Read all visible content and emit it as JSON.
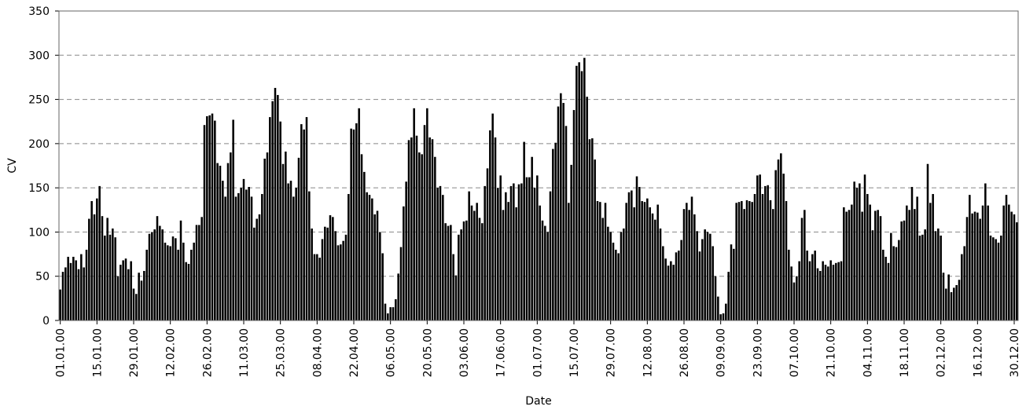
{
  "chart_data": {
    "type": "bar",
    "x_label": "Date",
    "y_label": "CV",
    "color": "#000000",
    "grid": true,
    "ylim": [
      0,
      350
    ],
    "yticks": [
      0,
      50,
      100,
      150,
      200,
      250,
      300,
      350
    ],
    "categories": [
      "01.01.00",
      null,
      null,
      null,
      null,
      null,
      null,
      null,
      null,
      null,
      null,
      null,
      null,
      null,
      "15.01.00",
      null,
      null,
      null,
      null,
      null,
      null,
      null,
      null,
      null,
      null,
      null,
      null,
      null,
      "29.01.00",
      null,
      null,
      null,
      null,
      null,
      null,
      null,
      null,
      null,
      null,
      null,
      null,
      null,
      "12.02.00",
      null,
      null,
      null,
      null,
      null,
      null,
      null,
      null,
      null,
      null,
      null,
      null,
      null,
      "26.02.00",
      null,
      null,
      null,
      null,
      null,
      null,
      null,
      null,
      null,
      null,
      null,
      null,
      null,
      "11.03.00",
      null,
      null,
      null,
      null,
      null,
      null,
      null,
      null,
      null,
      null,
      null,
      null,
      null,
      "25.03.00",
      null,
      null,
      null,
      null,
      null,
      null,
      null,
      null,
      null,
      null,
      null,
      null,
      null,
      "08.04.00",
      null,
      null,
      null,
      null,
      null,
      null,
      null,
      null,
      null,
      null,
      null,
      null,
      null,
      "22.04.00",
      null,
      null,
      null,
      null,
      null,
      null,
      null,
      null,
      null,
      null,
      null,
      null,
      null,
      "06.05.00",
      null,
      null,
      null,
      null,
      null,
      null,
      null,
      null,
      null,
      null,
      null,
      null,
      null,
      "20.05.00",
      null,
      null,
      null,
      null,
      null,
      null,
      null,
      null,
      null,
      null,
      null,
      null,
      null,
      "03.06.00",
      null,
      null,
      null,
      null,
      null,
      null,
      null,
      null,
      null,
      null,
      null,
      null,
      null,
      "17.06.00",
      null,
      null,
      null,
      null,
      null,
      null,
      null,
      null,
      null,
      null,
      null,
      null,
      null,
      "01.07.00",
      null,
      null,
      null,
      null,
      null,
      null,
      null,
      null,
      null,
      null,
      null,
      null,
      null,
      "15.07.00",
      null,
      null,
      null,
      null,
      null,
      null,
      null,
      null,
      null,
      null,
      null,
      null,
      null,
      "29.07.00",
      null,
      null,
      null,
      null,
      null,
      null,
      null,
      null,
      null,
      null,
      null,
      null,
      null,
      "12.08.00",
      null,
      null,
      null,
      null,
      null,
      null,
      null,
      null,
      null,
      null,
      null,
      null,
      null,
      "26.08.00",
      null,
      null,
      null,
      null,
      null,
      null,
      null,
      null,
      null,
      null,
      null,
      null,
      null,
      "09.09.00",
      null,
      null,
      null,
      null,
      null,
      null,
      null,
      null,
      null,
      null,
      null,
      null,
      null,
      "23.09.00",
      null,
      null,
      null,
      null,
      null,
      null,
      null,
      null,
      null,
      null,
      null,
      null,
      null,
      "07.10.00",
      null,
      null,
      null,
      null,
      null,
      null,
      null,
      null,
      null,
      null,
      null,
      null,
      null,
      "21.10.00",
      null,
      null,
      null,
      null,
      null,
      null,
      null,
      null,
      null,
      null,
      null,
      null,
      null,
      "04.11.00",
      null,
      null,
      null,
      null,
      null,
      null,
      null,
      null,
      null,
      null,
      null,
      null,
      null,
      "18.11.00",
      null,
      null,
      null,
      null,
      null,
      null,
      null,
      null,
      null,
      null,
      null,
      null,
      null,
      "02.12.00",
      null,
      null,
      null,
      null,
      null,
      null,
      null,
      null,
      null,
      null,
      null,
      null,
      null,
      "16.12.00",
      null,
      null,
      null,
      null,
      null,
      null,
      null,
      null,
      null,
      null,
      null,
      null,
      null,
      "30.12.00",
      null
    ],
    "values": [
      35,
      55,
      60,
      72,
      65,
      72,
      68,
      58,
      75,
      60,
      80,
      115,
      135,
      120,
      138,
      152,
      118,
      96,
      116,
      97,
      104,
      94,
      50,
      63,
      68,
      70,
      58,
      67,
      36,
      30,
      54,
      45,
      56,
      80,
      98,
      100,
      103,
      118,
      107,
      103,
      88,
      85,
      84,
      95,
      93,
      80,
      113,
      88,
      66,
      64,
      80,
      88,
      108,
      108,
      117,
      221,
      231,
      232,
      234,
      226,
      178,
      175,
      158,
      140,
      178,
      190,
      227,
      140,
      144,
      150,
      160,
      148,
      151,
      140,
      105,
      115,
      120,
      143,
      183,
      190,
      230,
      248,
      263,
      255,
      225,
      177,
      191,
      155,
      158,
      140,
      150,
      184,
      222,
      216,
      230,
      146,
      104,
      75,
      75,
      71,
      92,
      106,
      105,
      119,
      117,
      101,
      85,
      86,
      90,
      97,
      143,
      217,
      216,
      223,
      240,
      188,
      168,
      145,
      142,
      138,
      120,
      124,
      100,
      76,
      19,
      8,
      15,
      15,
      24,
      53,
      83,
      129,
      157,
      204,
      207,
      240,
      209,
      190,
      188,
      221,
      240,
      207,
      205,
      185,
      150,
      152,
      142,
      110,
      107,
      108,
      75,
      51,
      97,
      103,
      112,
      113,
      146,
      130,
      124,
      133,
      116,
      110,
      152,
      172,
      215,
      234,
      207,
      150,
      164,
      125,
      145,
      134,
      152,
      155,
      128,
      154,
      155,
      202,
      162,
      162,
      185,
      150,
      164,
      130,
      113,
      107,
      100,
      146,
      194,
      201,
      242,
      257,
      246,
      220,
      133,
      176,
      238,
      288,
      292,
      282,
      297,
      253,
      205,
      206,
      182,
      135,
      134,
      116,
      133,
      106,
      100,
      88,
      80,
      76,
      100,
      104,
      133,
      145,
      147,
      128,
      163,
      151,
      135,
      134,
      138,
      128,
      121,
      114,
      131,
      104,
      84,
      70,
      62,
      67,
      63,
      77,
      79,
      91,
      126,
      133,
      125,
      140,
      120,
      101,
      78,
      92,
      103,
      100,
      98,
      84,
      50,
      27,
      7,
      8,
      19,
      55,
      86,
      81,
      133,
      134,
      135,
      126,
      136,
      135,
      134,
      143,
      164,
      165,
      143,
      152,
      153,
      136,
      126,
      170,
      182,
      189,
      166,
      135,
      80,
      61,
      43,
      50,
      67,
      116,
      125,
      79,
      67,
      75,
      79,
      59,
      56,
      67,
      63,
      61,
      68,
      63,
      65,
      66,
      67,
      128,
      123,
      125,
      131,
      157,
      150,
      155,
      123,
      165,
      143,
      131,
      102,
      124,
      125,
      118,
      80,
      72,
      65,
      99,
      84,
      83,
      91,
      112,
      113,
      130,
      125,
      151,
      126,
      140,
      96,
      97,
      103,
      177,
      133,
      143,
      101,
      104,
      96,
      54,
      36,
      52,
      32,
      37,
      40,
      46,
      75,
      84,
      117,
      142,
      121,
      123,
      122,
      115,
      130,
      155,
      130,
      96,
      94,
      92,
      88,
      96,
      130,
      142,
      131,
      123,
      120,
      111
    ]
  }
}
